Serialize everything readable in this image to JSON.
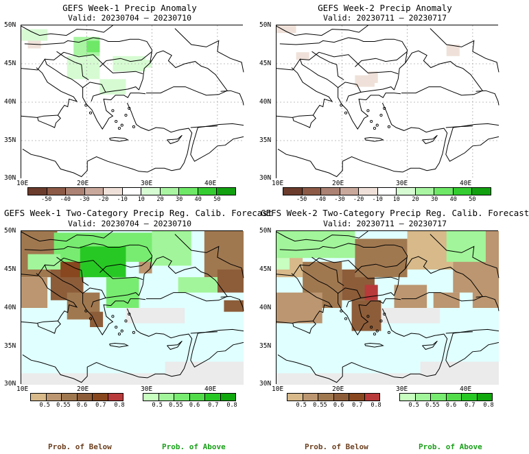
{
  "panels": [
    {
      "title": "GEFS Week-1 Precip Anomaly",
      "valid": "Valid: 20230704 – 20230710"
    },
    {
      "title": "GEFS Week-2 Precip Anomaly",
      "valid": "Valid: 20230711 – 20230717"
    },
    {
      "title": "GEFS Week-1 Two-Category Precip Reg. Calib. Forecast",
      "valid": "Valid: 20230704 – 20230710"
    },
    {
      "title": "GEFS Week-2 Two-Category Precip Reg. Calib. Forecast",
      "valid": "Valid: 20230711 – 20230717"
    }
  ],
  "lat_labels": [
    "50N",
    "45N",
    "40N",
    "35N",
    "30N"
  ],
  "lon_labels": [
    "10E",
    "20E",
    "30E",
    "40E"
  ],
  "anomaly_colorbar": {
    "labels": [
      "-50",
      "-40",
      "-30",
      "-20",
      "-10",
      "10",
      "20",
      "30",
      "40",
      "50"
    ],
    "colors": [
      "#6b3b2c",
      "#8c5a46",
      "#ab8273",
      "#caa99d",
      "#efe1d9",
      "#ffffff",
      "#d6fbd2",
      "#a9f5a2",
      "#6fe868",
      "#34cc30",
      "#12a010"
    ]
  },
  "prob_below_colorbar": {
    "labels": [
      "0.5",
      "0.55",
      "0.6",
      "0.7",
      "0.8"
    ],
    "colors": [
      "#d7b98a",
      "#bb9670",
      "#a07850",
      "#8d5d3a",
      "#88471e",
      "#b83a3a"
    ]
  },
  "prob_above_colorbar": {
    "labels": [
      "0.5",
      "0.55",
      "0.6",
      "0.7",
      "0.8"
    ],
    "colors": [
      "#c8ffc0",
      "#a2f59a",
      "#78ec70",
      "#52dc4a",
      "#28c824",
      "#10a80c"
    ]
  },
  "legend": {
    "below": "Prob. of Below",
    "above": "Prob. of Above"
  },
  "colors": {
    "sea": "#e0ffff",
    "land_gray": "#ebebeb",
    "below_color": "#6b3f1f",
    "above_color": "#1aa01a"
  }
}
